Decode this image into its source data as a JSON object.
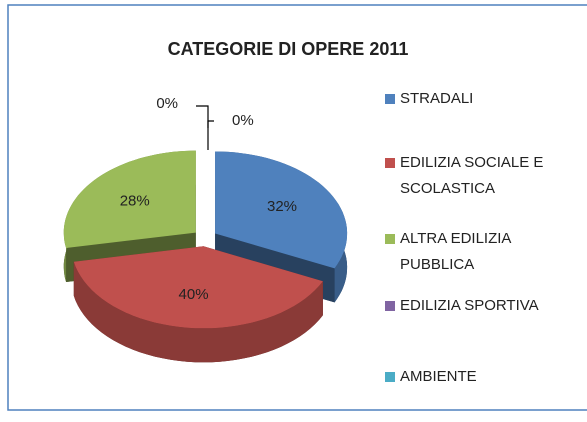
{
  "chart_data": {
    "type": "pie",
    "title": "CATEGORIE DI OPERE 2011",
    "categories": [
      "STRADALI",
      "EDILIZIA SOCIALE E SCOLASTICA",
      "ALTRA EDILIZIA PUBBLICA",
      "EDILIZIA SPORTIVA",
      "AMBIENTE"
    ],
    "values": [
      32,
      40,
      28,
      0,
      0
    ],
    "value_labels": [
      "32%",
      "40%",
      "28%",
      "0%",
      "0%"
    ],
    "colors": [
      "#4f81bd",
      "#c0504d",
      "#9bbb59",
      "#8064a2",
      "#4bacc6"
    ],
    "legend": "right"
  }
}
